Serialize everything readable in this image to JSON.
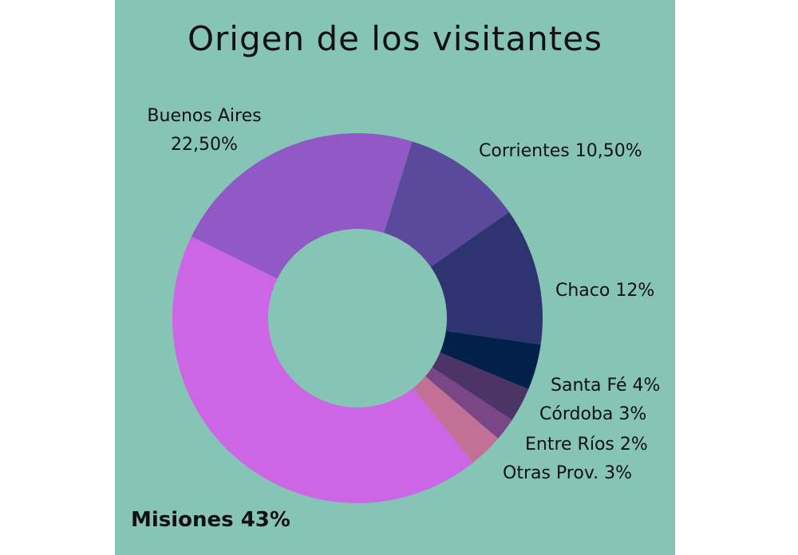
{
  "chart_data": {
    "type": "pie",
    "title": "Origen de los visitantes",
    "slices": [
      {
        "name": "Misiones",
        "label": "Misiones 43%",
        "value": 43,
        "color": "#cc66e4"
      },
      {
        "name": "Buenos Aires",
        "label_lines": [
          "Buenos Aires",
          "22,50%"
        ],
        "value": 22.5,
        "color": "#9159c6"
      },
      {
        "name": "Corrientes",
        "label": "Corrientes 10,50%",
        "value": 10.5,
        "color": "#5b4a9c"
      },
      {
        "name": "Chaco",
        "label": "Chaco 12%",
        "value": 12,
        "color": "#2e3470"
      },
      {
        "name": "Santa Fé",
        "label": "Santa Fé 4%",
        "value": 4,
        "color": "#03204b"
      },
      {
        "name": "Córdoba",
        "label": "Córdoba 3%",
        "value": 3,
        "color": "#4c3466"
      },
      {
        "name": "Entre Ríos",
        "label": "Entre Ríos 2%",
        "value": 2,
        "color": "#7b4686"
      },
      {
        "name": "Otras Prov.",
        "label": "Otras Prov. 3%",
        "value": 3,
        "color": "#c27095"
      }
    ],
    "legend": "none",
    "background": "#86c5b6"
  }
}
